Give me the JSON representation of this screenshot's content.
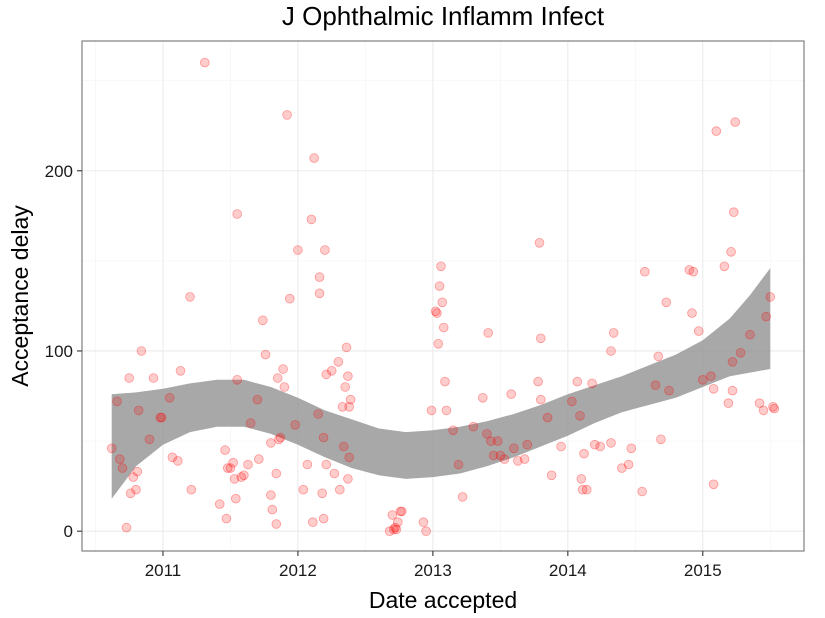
{
  "chart_data": {
    "type": "scatter",
    "title": "J Ophthalmic Inflamm Infect",
    "xlabel": "Date accepted",
    "ylabel": "Acceptance delay",
    "x_ticks": [
      "2011",
      "2012",
      "2013",
      "2014",
      "2015"
    ],
    "y_ticks": [
      "0",
      "100",
      "200"
    ],
    "xlim": [
      2010.4,
      2015.75
    ],
    "ylim": [
      -11,
      272
    ],
    "grid": true,
    "colors": {
      "points": "#ff0000",
      "ribbon": "#999999",
      "background": "#ffffff"
    },
    "points": [
      [
        2010.62,
        46
      ],
      [
        2010.66,
        72
      ],
      [
        2010.68,
        40
      ],
      [
        2010.7,
        35
      ],
      [
        2010.73,
        2
      ],
      [
        2010.75,
        85
      ],
      [
        2010.76,
        21
      ],
      [
        2010.78,
        30
      ],
      [
        2010.8,
        23
      ],
      [
        2010.81,
        33
      ],
      [
        2010.82,
        67
      ],
      [
        2010.84,
        100
      ],
      [
        2010.9,
        51
      ],
      [
        2010.93,
        85
      ],
      [
        2010.98,
        63
      ],
      [
        2010.99,
        63
      ],
      [
        2011.05,
        74
      ],
      [
        2011.07,
        41
      ],
      [
        2011.11,
        39
      ],
      [
        2011.13,
        89
      ],
      [
        2011.2,
        130
      ],
      [
        2011.21,
        23
      ],
      [
        2011.31,
        260
      ],
      [
        2011.42,
        15
      ],
      [
        2011.46,
        45
      ],
      [
        2011.47,
        7
      ],
      [
        2011.48,
        35
      ],
      [
        2011.5,
        35
      ],
      [
        2011.52,
        38
      ],
      [
        2011.53,
        29
      ],
      [
        2011.54,
        18
      ],
      [
        2011.55,
        176
      ],
      [
        2011.55,
        84
      ],
      [
        2011.58,
        30
      ],
      [
        2011.6,
        31
      ],
      [
        2011.63,
        37
      ],
      [
        2011.65,
        60
      ],
      [
        2011.7,
        73
      ],
      [
        2011.71,
        40
      ],
      [
        2011.74,
        117
      ],
      [
        2011.76,
        98
      ],
      [
        2011.8,
        49
      ],
      [
        2011.8,
        20
      ],
      [
        2011.81,
        12
      ],
      [
        2011.84,
        4
      ],
      [
        2011.84,
        32
      ],
      [
        2011.85,
        85
      ],
      [
        2011.86,
        51
      ],
      [
        2011.87,
        52
      ],
      [
        2011.89,
        90
      ],
      [
        2011.9,
        80
      ],
      [
        2011.92,
        231
      ],
      [
        2011.94,
        129
      ],
      [
        2011.98,
        59
      ],
      [
        2012.0,
        156
      ],
      [
        2012.04,
        23
      ],
      [
        2012.07,
        37
      ],
      [
        2012.1,
        173
      ],
      [
        2012.11,
        5
      ],
      [
        2012.12,
        207
      ],
      [
        2012.15,
        65
      ],
      [
        2012.16,
        141
      ],
      [
        2012.16,
        132
      ],
      [
        2012.18,
        21
      ],
      [
        2012.19,
        7
      ],
      [
        2012.19,
        52
      ],
      [
        2012.2,
        156
      ],
      [
        2012.21,
        87
      ],
      [
        2012.21,
        37
      ],
      [
        2012.25,
        89
      ],
      [
        2012.27,
        32
      ],
      [
        2012.3,
        94
      ],
      [
        2012.31,
        23
      ],
      [
        2012.33,
        69
      ],
      [
        2012.34,
        47
      ],
      [
        2012.35,
        80
      ],
      [
        2012.36,
        102
      ],
      [
        2012.37,
        86
      ],
      [
        2012.37,
        29
      ],
      [
        2012.38,
        69
      ],
      [
        2012.38,
        41
      ],
      [
        2012.39,
        73
      ],
      [
        2012.68,
        0
      ],
      [
        2012.7,
        9
      ],
      [
        2012.71,
        1
      ],
      [
        2012.72,
        2
      ],
      [
        2012.73,
        1
      ],
      [
        2012.74,
        5
      ],
      [
        2012.76,
        11
      ],
      [
        2012.77,
        11
      ],
      [
        2012.93,
        5
      ],
      [
        2012.95,
        0
      ],
      [
        2012.99,
        67
      ],
      [
        2013.02,
        122
      ],
      [
        2013.03,
        121
      ],
      [
        2013.04,
        104
      ],
      [
        2013.05,
        136
      ],
      [
        2013.06,
        147
      ],
      [
        2013.07,
        127
      ],
      [
        2013.08,
        113
      ],
      [
        2013.09,
        83
      ],
      [
        2013.1,
        67
      ],
      [
        2013.15,
        56
      ],
      [
        2013.19,
        37
      ],
      [
        2013.22,
        19
      ],
      [
        2013.3,
        58
      ],
      [
        2013.37,
        74
      ],
      [
        2013.4,
        54
      ],
      [
        2013.41,
        110
      ],
      [
        2013.43,
        50
      ],
      [
        2013.45,
        42
      ],
      [
        2013.48,
        50
      ],
      [
        2013.5,
        42
      ],
      [
        2013.53,
        40
      ],
      [
        2013.58,
        76
      ],
      [
        2013.6,
        46
      ],
      [
        2013.63,
        39
      ],
      [
        2013.68,
        40
      ],
      [
        2013.7,
        48
      ],
      [
        2013.78,
        83
      ],
      [
        2013.79,
        160
      ],
      [
        2013.8,
        107
      ],
      [
        2013.8,
        73
      ],
      [
        2013.85,
        63
      ],
      [
        2013.88,
        31
      ],
      [
        2013.95,
        47
      ],
      [
        2014.03,
        72
      ],
      [
        2014.07,
        83
      ],
      [
        2014.09,
        64
      ],
      [
        2014.1,
        29
      ],
      [
        2014.11,
        23
      ],
      [
        2014.12,
        43
      ],
      [
        2014.14,
        23
      ],
      [
        2014.18,
        82
      ],
      [
        2014.2,
        48
      ],
      [
        2014.24,
        47
      ],
      [
        2014.32,
        49
      ],
      [
        2014.32,
        100
      ],
      [
        2014.34,
        110
      ],
      [
        2014.4,
        35
      ],
      [
        2014.45,
        37
      ],
      [
        2014.47,
        46
      ],
      [
        2014.55,
        22
      ],
      [
        2014.57,
        144
      ],
      [
        2014.65,
        81
      ],
      [
        2014.67,
        97
      ],
      [
        2014.69,
        51
      ],
      [
        2014.73,
        127
      ],
      [
        2014.75,
        78
      ],
      [
        2014.9,
        145
      ],
      [
        2014.92,
        121
      ],
      [
        2014.93,
        144
      ],
      [
        2014.97,
        111
      ],
      [
        2015.0,
        84
      ],
      [
        2015.06,
        86
      ],
      [
        2015.08,
        79
      ],
      [
        2015.08,
        26
      ],
      [
        2015.1,
        222
      ],
      [
        2015.16,
        147
      ],
      [
        2015.19,
        71
      ],
      [
        2015.21,
        155
      ],
      [
        2015.22,
        78
      ],
      [
        2015.22,
        94
      ],
      [
        2015.23,
        177
      ],
      [
        2015.24,
        227
      ],
      [
        2015.28,
        99
      ],
      [
        2015.35,
        109
      ],
      [
        2015.42,
        71
      ],
      [
        2015.45,
        67
      ],
      [
        2015.47,
        119
      ],
      [
        2015.5,
        130
      ],
      [
        2015.52,
        69
      ],
      [
        2015.53,
        68
      ]
    ],
    "smooth": {
      "x": [
        2010.62,
        2010.8,
        2011.0,
        2011.2,
        2011.4,
        2011.6,
        2011.8,
        2012.0,
        2012.2,
        2012.4,
        2012.6,
        2012.8,
        2013.0,
        2013.2,
        2013.4,
        2013.6,
        2013.8,
        2014.0,
        2014.2,
        2014.4,
        2014.6,
        2014.8,
        2015.0,
        2015.2,
        2015.35,
        2015.5
      ],
      "lower": [
        18,
        36,
        48,
        55,
        58,
        58,
        54,
        48,
        41,
        35,
        31,
        29,
        30,
        32,
        36,
        41,
        47,
        53,
        60,
        66,
        70,
        74,
        80,
        86,
        88,
        90
      ],
      "upper": [
        76,
        77,
        79,
        82,
        84,
        84,
        80,
        74,
        67,
        62,
        57,
        55,
        56,
        58,
        61,
        65,
        70,
        76,
        81,
        86,
        92,
        98,
        106,
        118,
        131,
        146
      ]
    }
  }
}
